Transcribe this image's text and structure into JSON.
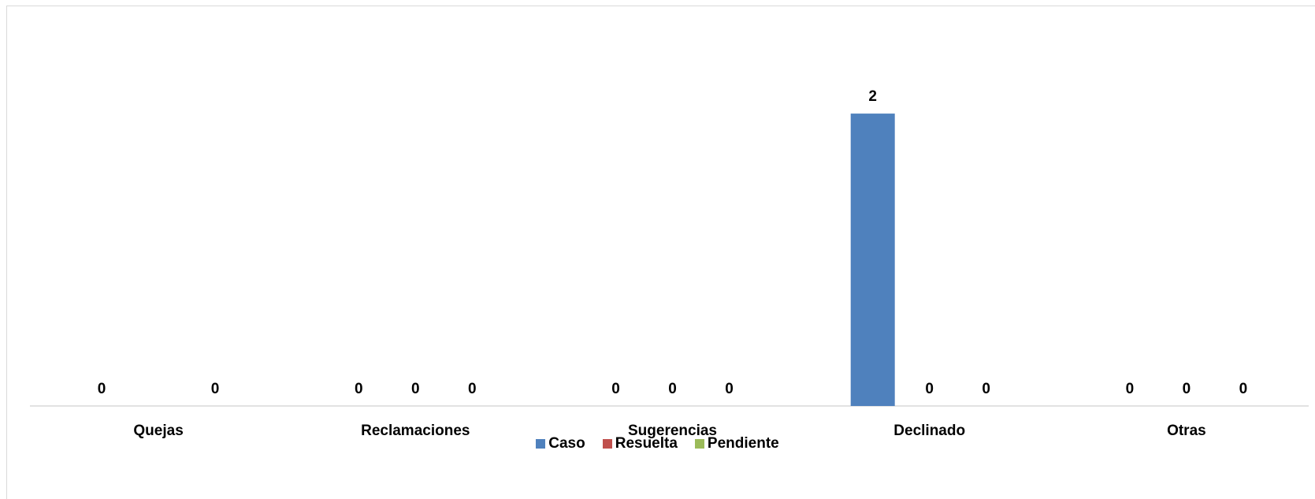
{
  "chart_data": {
    "type": "bar",
    "categories": [
      "Quejas",
      "Reclamaciones",
      "Sugerencias",
      "Declinado",
      "Otras"
    ],
    "series": [
      {
        "name": "Caso",
        "color": "#4f81bd",
        "values": [
          0,
          0,
          0,
          2,
          0
        ],
        "labels": [
          "0",
          "0",
          "0",
          "2",
          "0"
        ]
      },
      {
        "name": "Resuelta",
        "color": "#c0504d",
        "values": [
          null,
          0,
          0,
          0,
          0
        ],
        "labels": [
          "",
          "0",
          "0",
          "0",
          "0"
        ]
      },
      {
        "name": "Pendiente",
        "color": "#9bbb59",
        "values": [
          0,
          0,
          0,
          0,
          0
        ],
        "labels": [
          "0",
          "0",
          "0",
          "0",
          "0"
        ]
      }
    ],
    "ylim": [
      0,
      2.2
    ],
    "grid": false,
    "legend": "bottom"
  }
}
